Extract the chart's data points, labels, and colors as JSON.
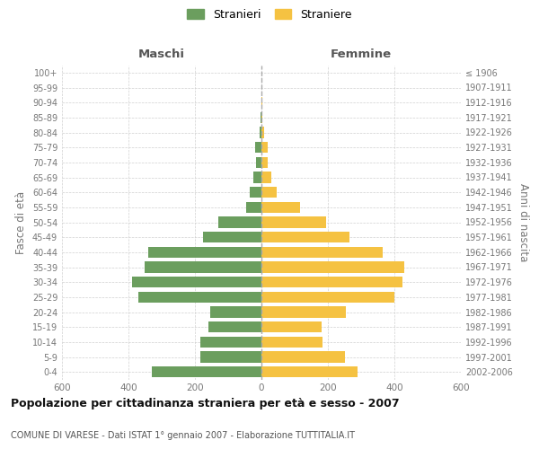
{
  "age_groups": [
    "0-4",
    "5-9",
    "10-14",
    "15-19",
    "20-24",
    "25-29",
    "30-34",
    "35-39",
    "40-44",
    "45-49",
    "50-54",
    "55-59",
    "60-64",
    "65-69",
    "70-74",
    "75-79",
    "80-84",
    "85-89",
    "90-94",
    "95-99",
    "100+"
  ],
  "birth_years": [
    "2002-2006",
    "1997-2001",
    "1992-1996",
    "1987-1991",
    "1982-1986",
    "1977-1981",
    "1972-1976",
    "1967-1971",
    "1962-1966",
    "1957-1961",
    "1952-1956",
    "1947-1951",
    "1942-1946",
    "1937-1941",
    "1932-1936",
    "1927-1931",
    "1922-1926",
    "1917-1921",
    "1912-1916",
    "1907-1911",
    "≤ 1906"
  ],
  "maschi": [
    330,
    185,
    185,
    160,
    155,
    370,
    390,
    350,
    340,
    175,
    130,
    45,
    35,
    25,
    15,
    18,
    5,
    2,
    1,
    0,
    0
  ],
  "femmine": [
    290,
    250,
    185,
    180,
    255,
    400,
    425,
    430,
    365,
    265,
    195,
    115,
    45,
    30,
    18,
    18,
    8,
    3,
    2,
    0,
    0
  ],
  "maschi_color": "#6b9e5e",
  "femmine_color": "#f5c242",
  "title": "Popolazione per cittadinanza straniera per età e sesso - 2007",
  "subtitle": "COMUNE DI VARESE - Dati ISTAT 1° gennaio 2007 - Elaborazione TUTTITALIA.IT",
  "ylabel_left": "Fasce di età",
  "ylabel_right": "Anni di nascita",
  "xlabel_left": "Maschi",
  "xlabel_right": "Femmine",
  "legend_maschi": "Stranieri",
  "legend_femmine": "Straniere",
  "xlim": 600,
  "background_color": "#ffffff",
  "grid_color": "#cccccc"
}
